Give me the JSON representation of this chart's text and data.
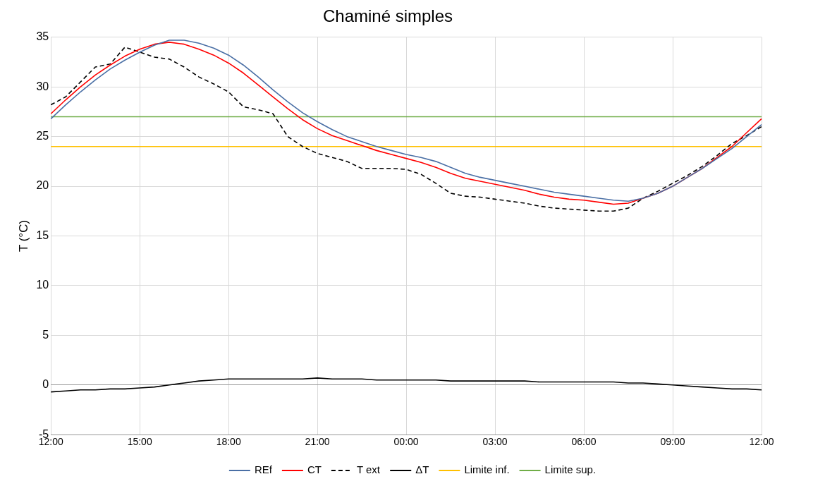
{
  "chart_data": {
    "type": "line",
    "title": "Chaminé simples",
    "ylabel": "T (°C)",
    "categories": [
      "12:00",
      null,
      null,
      null,
      null,
      null,
      "15:00",
      null,
      null,
      null,
      null,
      null,
      "18:00",
      null,
      null,
      null,
      null,
      null,
      "21:00",
      null,
      null,
      null,
      null,
      null,
      "00:00",
      null,
      null,
      null,
      null,
      null,
      "03:00",
      null,
      null,
      null,
      null,
      null,
      "06:00",
      null,
      null,
      null,
      null,
      null,
      "09:00",
      null,
      null,
      null,
      null,
      null,
      "12:00"
    ],
    "ylim": [
      -5,
      35
    ],
    "yticks": [
      -5,
      0,
      5,
      10,
      15,
      20,
      25,
      30,
      35
    ],
    "grid": true,
    "legend": "bottom",
    "marker": "none",
    "series": [
      {
        "name": "REf",
        "color": "#4a6fa5",
        "values": [
          26.8,
          28.2,
          29.5,
          30.7,
          31.8,
          32.7,
          33.5,
          34.2,
          34.7,
          34.7,
          34.4,
          33.9,
          33.2,
          32.2,
          31,
          29.7,
          28.5,
          27.4,
          26.5,
          25.7,
          25,
          24.5,
          24,
          23.6,
          23.2,
          22.9,
          22.5,
          21.9,
          21.3,
          20.9,
          20.6,
          20.3,
          20,
          19.7,
          19.4,
          19.2,
          19,
          18.8,
          18.6,
          18.5,
          18.8,
          19.3,
          20,
          20.9,
          21.8,
          22.8,
          23.8,
          25,
          26.2
        ]
      },
      {
        "name": "CT",
        "color": "#ff0000",
        "values": [
          27.3,
          28.7,
          30,
          31.2,
          32.2,
          33.1,
          33.8,
          34.3,
          34.5,
          34.3,
          33.8,
          33.2,
          32.4,
          31.4,
          30.2,
          29,
          27.8,
          26.7,
          25.8,
          25.1,
          24.6,
          24.1,
          23.6,
          23.2,
          22.8,
          22.4,
          21.9,
          21.3,
          20.8,
          20.5,
          20.2,
          19.9,
          19.6,
          19.2,
          18.9,
          18.7,
          18.6,
          18.4,
          18.2,
          18.3,
          18.8,
          19.3,
          20,
          20.9,
          21.8,
          22.9,
          24,
          25.4,
          26.8
        ]
      },
      {
        "name": "T ext",
        "color": "#000000",
        "line_style": "dashed",
        "values": [
          28.2,
          29,
          30.5,
          32,
          32.3,
          34,
          33.5,
          33,
          32.8,
          32,
          31,
          30.3,
          29.5,
          28,
          27.7,
          27.3,
          25,
          24,
          23.3,
          22.9,
          22.5,
          21.8,
          21.8,
          21.8,
          21.7,
          21.2,
          20.3,
          19.3,
          19,
          18.9,
          18.7,
          18.5,
          18.3,
          18,
          17.8,
          17.7,
          17.6,
          17.5,
          17.5,
          17.8,
          18.8,
          19.5,
          20.3,
          21.1,
          22,
          23.1,
          24.3,
          25.1,
          26
        ]
      },
      {
        "name": "ΔT",
        "color": "#000000",
        "values": [
          -0.7,
          -0.6,
          -0.5,
          -0.5,
          -0.4,
          -0.4,
          -0.3,
          -0.2,
          0,
          0.2,
          0.4,
          0.5,
          0.6,
          0.6,
          0.6,
          0.6,
          0.6,
          0.6,
          0.7,
          0.6,
          0.6,
          0.6,
          0.5,
          0.5,
          0.5,
          0.5,
          0.5,
          0.4,
          0.4,
          0.4,
          0.4,
          0.4,
          0.4,
          0.3,
          0.3,
          0.3,
          0.3,
          0.3,
          0.3,
          0.2,
          0.2,
          0.1,
          0,
          -0.1,
          -0.2,
          -0.3,
          -0.4,
          -0.4,
          -0.5
        ]
      },
      {
        "name": "Limite inf.",
        "color": "#ffc000",
        "values": [
          24,
          24,
          24,
          24,
          24,
          24,
          24,
          24,
          24,
          24,
          24,
          24,
          24,
          24,
          24,
          24,
          24,
          24,
          24,
          24,
          24,
          24,
          24,
          24,
          24,
          24,
          24,
          24,
          24,
          24,
          24,
          24,
          24,
          24,
          24,
          24,
          24,
          24,
          24,
          24,
          24,
          24,
          24,
          24,
          24,
          24,
          24,
          24,
          24
        ]
      },
      {
        "name": "Limite sup.",
        "color": "#70ad47",
        "values": [
          27,
          27,
          27,
          27,
          27,
          27,
          27,
          27,
          27,
          27,
          27,
          27,
          27,
          27,
          27,
          27,
          27,
          27,
          27,
          27,
          27,
          27,
          27,
          27,
          27,
          27,
          27,
          27,
          27,
          27,
          27,
          27,
          27,
          27,
          27,
          27,
          27,
          27,
          27,
          27,
          27,
          27,
          27,
          27,
          27,
          27,
          27,
          27,
          27
        ]
      }
    ]
  }
}
